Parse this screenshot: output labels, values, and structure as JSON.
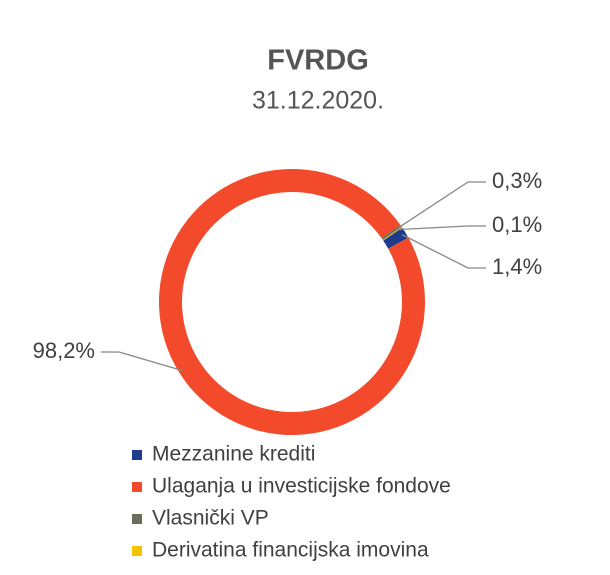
{
  "chart_data": {
    "type": "pie",
    "title": "FVRDG",
    "subtitle": "31.12.2020.",
    "categories": [
      "Mezzanine krediti",
      "Ulaganja u investicijske fondove",
      "Vlasnički VP",
      "Derivatina financijska imovina"
    ],
    "values": [
      1.4,
      98.2,
      0.3,
      0.1
    ],
    "value_labels": [
      "1,4%",
      "98,2%",
      "0,3%",
      "0,1%"
    ],
    "colors": [
      "#1f3c8c",
      "#f24a2b",
      "#6e6c5c",
      "#f5c400"
    ],
    "legend": "bottom"
  }
}
